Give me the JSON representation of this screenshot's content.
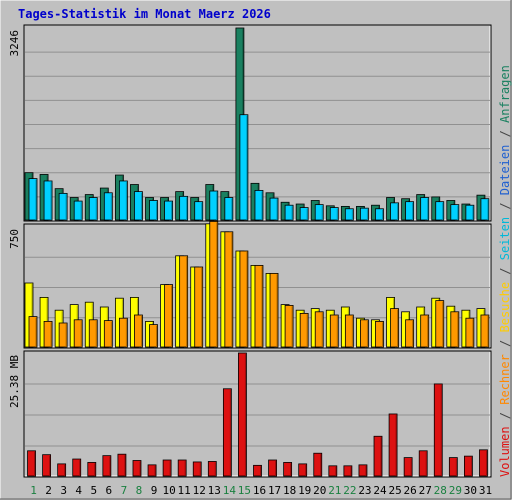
{
  "chart_data": {
    "type": "bar",
    "title": "Tages-Statistik im Monat Maerz 2026",
    "days": [
      "1",
      "2",
      "3",
      "4",
      "5",
      "6",
      "7",
      "8",
      "9",
      "10",
      "11",
      "12",
      "13",
      "14",
      "15",
      "16",
      "17",
      "18",
      "19",
      "20",
      "21",
      "22",
      "23",
      "24",
      "25",
      "26",
      "27",
      "28",
      "29",
      "30",
      "31"
    ],
    "weekend_days": [
      1,
      7,
      8,
      14,
      15,
      21,
      22,
      28,
      29
    ],
    "panels": [
      {
        "id": "top",
        "ymax_label": "3246",
        "ymax": 3246,
        "series": [
          {
            "name": "Anfragen",
            "color": "#1a8060",
            "values": [
              800,
              770,
              530,
              380,
              430,
              540,
              760,
              600,
              380,
              380,
              480,
              380,
              600,
              480,
              3246,
              620,
              460,
              300,
              270,
              330,
              240,
              230,
              230,
              250,
              380,
              360,
              430,
              390,
              330,
              270,
              420
            ]
          },
          {
            "name": "Dateien",
            "color": "#00d0ff",
            "values": [
              700,
              660,
              450,
              320,
              380,
              460,
              660,
              480,
              330,
              320,
              400,
              310,
              490,
              380,
              1780,
              500,
              370,
              250,
              210,
              260,
              210,
              190,
              200,
              190,
              290,
              310,
              380,
              310,
              260,
              250,
              360
            ]
          }
        ]
      },
      {
        "id": "middle",
        "ymax_label": "750",
        "ymax": 750,
        "series": [
          {
            "name": "Seiten",
            "color": "#ffff00",
            "values": [
              400,
              310,
              230,
              265,
              280,
              250,
              305,
              310,
              160,
              390,
              570,
              500,
              770,
              720,
              600,
              510,
              460,
              265,
              230,
              240,
              230,
              250,
              180,
              170,
              310,
              220,
              250,
              305,
              255,
              230,
              240
            ]
          },
          {
            "name": "Besuche",
            "color": "#ff9900",
            "values": [
              190,
              160,
              150,
              170,
              170,
              165,
              180,
              200,
              140,
              390,
              570,
              500,
              785,
              720,
              600,
              510,
              460,
              260,
              210,
              220,
              200,
              200,
              170,
              160,
              240,
              170,
              200,
              290,
              220,
              180,
              200
            ]
          }
        ]
      },
      {
        "id": "bottom",
        "ymax_label": "25.38 MB",
        "ymax": 25.38,
        "series": [
          {
            "name": "Volumen",
            "color": "#dd1111",
            "values": [
              5.2,
              4.4,
              2.5,
              3.5,
              2.8,
              4.2,
              4.5,
              3.2,
              2.3,
              3.3,
              3.3,
              2.9,
              3.0,
              18.0,
              25.38,
              2.2,
              3.3,
              2.8,
              2.5,
              4.7,
              2.1,
              2.1,
              2.3,
              8.2,
              12.8,
              3.8,
              5.2,
              19.0,
              3.8,
              4.1,
              5.4
            ]
          },
          {
            "name": "Rechner",
            "color": "#ff6600",
            "values": []
          }
        ]
      }
    ],
    "right_legend": [
      {
        "text": "Volumen",
        "color": "#dd1111"
      },
      {
        "text": "/",
        "color": "#444444"
      },
      {
        "text": "Rechner",
        "color": "#ff8800"
      },
      {
        "text": "/",
        "color": "#444444"
      },
      {
        "text": "Besuche",
        "color": "#ffcc00"
      },
      {
        "text": "/",
        "color": "#444444"
      },
      {
        "text": "Seiten",
        "color": "#00b8d8"
      },
      {
        "text": "/",
        "color": "#444444"
      },
      {
        "text": "Dateien",
        "color": "#2060d0"
      },
      {
        "text": "/",
        "color": "#444444"
      },
      {
        "text": "Anfragen",
        "color": "#1a8060"
      }
    ],
    "colors": {
      "background": "#c0c0c0",
      "plot_bg": "#c0c0c0",
      "grid": "#909090",
      "title": "#0000cc",
      "weekday_label": "#000000",
      "weekend_label": "#1a8040"
    }
  }
}
